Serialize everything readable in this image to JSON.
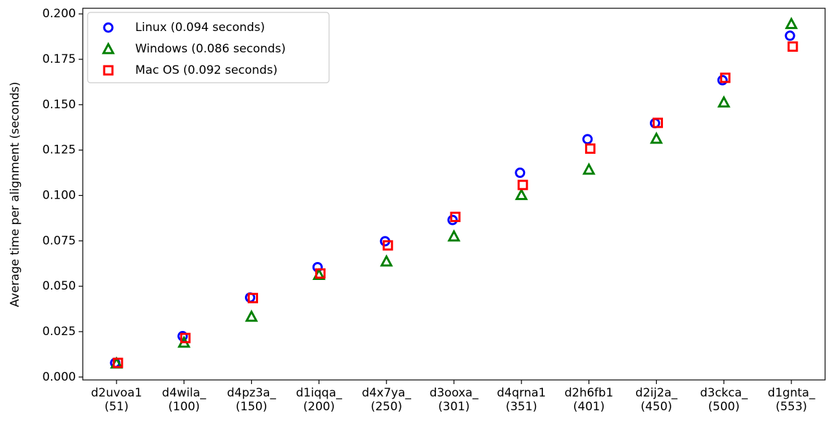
{
  "chart_data": {
    "type": "scatter",
    "ylabel": "Average time per alignment (seconds)",
    "categories": [
      "d2uvoa1\n(51)",
      "d4wila_\n(100)",
      "d4pz3a_\n(150)",
      "d1iqqa_\n(200)",
      "d4x7ya_\n(250)",
      "d3ooxa_\n(301)",
      "d4qrna1\n(351)",
      "d2h6fb1\n(401)",
      "d2ij2a_\n(450)",
      "d3ckca_\n(500)",
      "d1gnta_\n(553)"
    ],
    "series": [
      {
        "name": "Linux (0.094 seconds)",
        "color": "#0000ff",
        "marker": "circle",
        "values": [
          0.0078,
          0.0225,
          0.0438,
          0.0605,
          0.0748,
          0.0865,
          0.1125,
          0.131,
          0.1398,
          0.1635,
          0.188
        ]
      },
      {
        "name": "Windows (0.086 seconds)",
        "color": "#008000",
        "marker": "triangle",
        "values": [
          0.0075,
          0.019,
          0.0333,
          0.0563,
          0.0637,
          0.0775,
          0.1003,
          0.1143,
          0.1313,
          0.1513,
          0.1945
        ]
      },
      {
        "name": "Mac OS (0.092 seconds)",
        "color": "#ff0000",
        "marker": "square",
        "values": [
          0.0078,
          0.0215,
          0.0435,
          0.057,
          0.0725,
          0.0882,
          0.1058,
          0.1258,
          0.14,
          0.1648,
          0.182
        ]
      }
    ],
    "ylim": [
      -0.0016,
      0.2031
    ],
    "yticks": [
      {
        "value": 0,
        "label": "0.000"
      },
      0.025,
      {
        "value": 0.05,
        "label": "0.050"
      },
      0.075,
      {
        "value": 0.1,
        "label": "0.100"
      },
      0.125,
      {
        "value": 0.15,
        "label": "0.150"
      },
      0.175,
      {
        "value": 0.2,
        "label": "0.200"
      }
    ],
    "legend": "upper left"
  }
}
